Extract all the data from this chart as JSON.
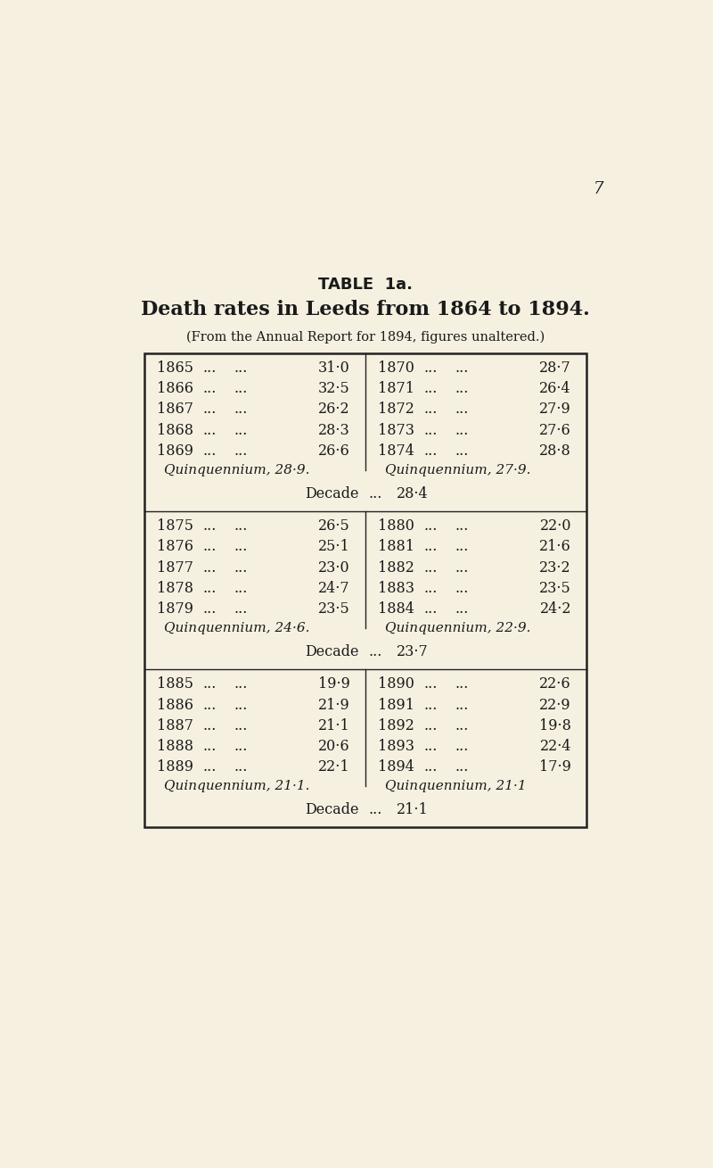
{
  "title_label": "TABLE  1a.",
  "subtitle": "Death rates in Leeds from 1864 to 1894.",
  "source_note": "(From the Annual Report for 1894, figures unaltered.)",
  "background_color": "#f5f0e0",
  "text_color": "#1a1a1a",
  "page_number": "7",
  "decades": [
    {
      "left_years": [
        "1865",
        "1866",
        "1867",
        "1868",
        "1869"
      ],
      "left_values": [
        "31·0",
        "32·5",
        "26·2",
        "28·3",
        "26·6"
      ],
      "left_quinquennium": "Quinquennium, 28·9.",
      "right_years": [
        "1870",
        "1871",
        "1872",
        "1873",
        "1874"
      ],
      "right_values": [
        "28·7",
        "26·4",
        "27·9",
        "27·6",
        "28·8"
      ],
      "right_quinquennium": "Quinquennium, 27·9.",
      "decade_label": "Decade",
      "decade_value": "28·4"
    },
    {
      "left_years": [
        "1875",
        "1876",
        "1877",
        "1878",
        "1879"
      ],
      "left_values": [
        "26·5",
        "25·1",
        "23·0",
        "24·7",
        "23·5"
      ],
      "left_quinquennium": "Quinquennium, 24·6.",
      "right_years": [
        "1880",
        "1881",
        "1882",
        "1883",
        "1884"
      ],
      "right_values": [
        "22·0",
        "21·6",
        "23·2",
        "23·5",
        "24·2"
      ],
      "right_quinquennium": "Quinquennium, 22·9.",
      "decade_label": "Decade",
      "decade_value": "23·7"
    },
    {
      "left_years": [
        "1885",
        "1886",
        "1887",
        "1888",
        "1889"
      ],
      "left_values": [
        "19·9",
        "21·9",
        "21·1",
        "20·6",
        "22·1"
      ],
      "left_quinquennium": "Quinquennium, 21·1.",
      "right_years": [
        "1890",
        "1891",
        "1892",
        "1893",
        "1894"
      ],
      "right_values": [
        "22·6",
        "22·9",
        "19·8",
        "22·4",
        "17·9"
      ],
      "right_quinquennium": "Quinquennium, 21·1",
      "decade_label": "Decade",
      "decade_value": "21·1"
    }
  ]
}
